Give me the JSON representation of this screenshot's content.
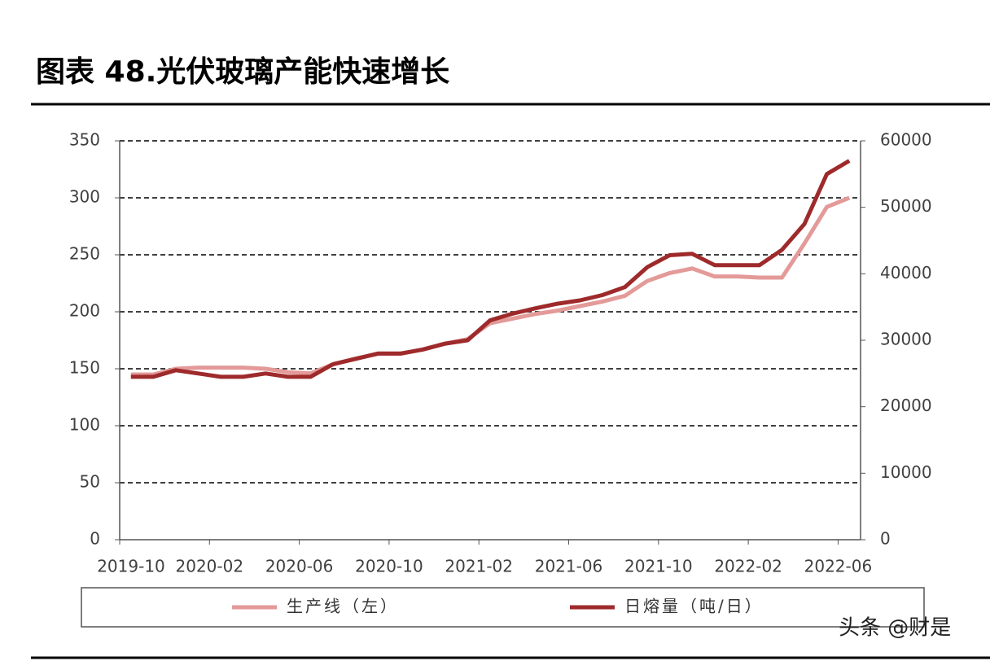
{
  "chart_data": {
    "type": "line",
    "title": "图表 48.光伏玻璃产能快速增长",
    "categories": [
      "2019-10",
      null,
      null,
      null,
      "2020-02",
      null,
      null,
      null,
      "2020-06",
      null,
      null,
      null,
      "2020-10",
      null,
      null,
      null,
      "2021-02",
      null,
      null,
      null,
      "2021-06",
      null,
      null,
      null,
      "2021-10",
      null,
      null,
      null,
      "2022-02",
      null,
      null,
      null,
      "2022-06"
    ],
    "series": [
      {
        "name": "生产线（左）",
        "color": "#e39a98",
        "axis": "y",
        "values": [
          145,
          145,
          150,
          151,
          151,
          151,
          150,
          147,
          146,
          154,
          159,
          163,
          163,
          167,
          172,
          176,
          190,
          194,
          198,
          201,
          205,
          209,
          214,
          227,
          234,
          238,
          231,
          231,
          230,
          230,
          260,
          292,
          300
        ]
      },
      {
        "name": "日熔量（吨/日）",
        "color": "#9e2a2b",
        "axis": "y2",
        "values": [
          24500,
          24500,
          25500,
          25000,
          24500,
          24500,
          25000,
          24500,
          24500,
          26400,
          27200,
          28000,
          28000,
          28600,
          29500,
          30000,
          33000,
          34000,
          34800,
          35500,
          36000,
          36800,
          38000,
          41000,
          42800,
          43000,
          41300,
          41300,
          41300,
          43600,
          47500,
          55000,
          57000
        ]
      }
    ],
    "ylim": [
      0,
      350
    ],
    "yticks": [
      0,
      50,
      100,
      150,
      200,
      250,
      300,
      350
    ],
    "y2lim": [
      0,
      60000
    ],
    "y2ticks": [
      0,
      10000,
      20000,
      30000,
      40000,
      50000,
      60000
    ],
    "grid": true,
    "legend": "bottom",
    "watermark": "头条 @财是"
  }
}
